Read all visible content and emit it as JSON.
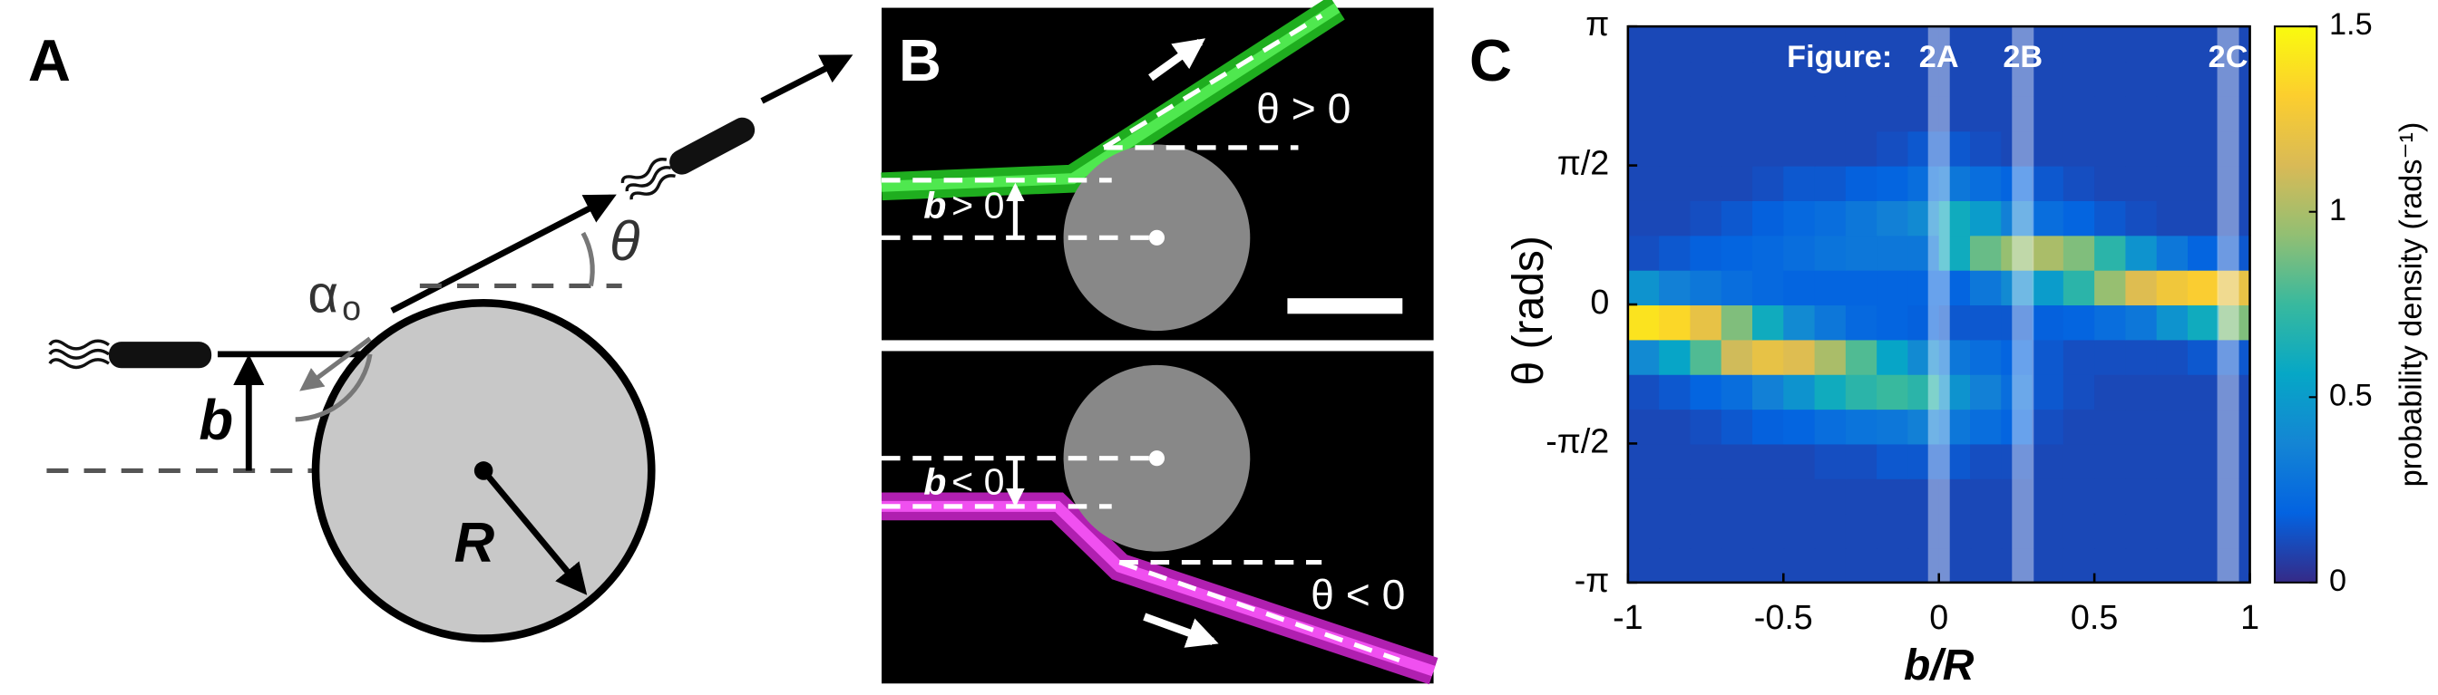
{
  "panel_a": {
    "label": "A",
    "alpha": "α",
    "alpha_sub": "o",
    "theta": "θ",
    "b": "b",
    "r": "R"
  },
  "panel_b": {
    "label": "B",
    "top_theta": "θ > 0",
    "top_b": "b",
    "top_b_rel": "> 0",
    "bottom_b": "b",
    "bottom_b_rel": "< 0",
    "bottom_theta": "θ < 0"
  },
  "chart_data": {
    "type": "heatmap",
    "label": "C",
    "xlabel": "b/R",
    "ylabel": "θ (rads)",
    "xlim": [
      -1,
      1
    ],
    "xticks": [
      -1,
      -0.5,
      0,
      0.5,
      1
    ],
    "ylim": [
      -3.1416,
      3.1416
    ],
    "yticks": [
      {
        "value": -3.1416,
        "label": "-π"
      },
      {
        "value": -1.5708,
        "label": "-π/2"
      },
      0,
      {
        "value": 1.5708,
        "label": "π/2"
      },
      {
        "value": 3.1416,
        "label": "π"
      }
    ],
    "z": [
      [
        0.1,
        0.1,
        0.1,
        0.1,
        0.1,
        0.1,
        0.1,
        0.1,
        0.1,
        0.1,
        0.1,
        0.1,
        0.1,
        0.1,
        0.1,
        0.1,
        0.1,
        0.1,
        0.1,
        0.1
      ],
      [
        0.1,
        0.1,
        0.1,
        0.1,
        0.1,
        0.1,
        0.1,
        0.1,
        0.1,
        0.1,
        0.1,
        0.1,
        0.1,
        0.1,
        0.1,
        0.1,
        0.1,
        0.1,
        0.1,
        0.1
      ],
      [
        0.1,
        0.1,
        0.1,
        0.1,
        0.1,
        0.1,
        0.1,
        0.1,
        0.1,
        0.1,
        0.1,
        0.1,
        0.1,
        0.1,
        0.1,
        0.1,
        0.1,
        0.1,
        0.1,
        0.1
      ],
      [
        0.1,
        0.1,
        0.1,
        0.1,
        0.1,
        0.1,
        0.12,
        0.12,
        0.15,
        0.15,
        0.15,
        0.12,
        0.12,
        0.1,
        0.1,
        0.1,
        0.1,
        0.1,
        0.1,
        0.1
      ],
      [
        0.1,
        0.1,
        0.12,
        0.15,
        0.18,
        0.2,
        0.25,
        0.28,
        0.3,
        0.35,
        0.3,
        0.25,
        0.2,
        0.12,
        0.1,
        0.1,
        0.1,
        0.1,
        0.1,
        0.1
      ],
      [
        0.12,
        0.15,
        0.2,
        0.25,
        0.35,
        0.45,
        0.6,
        0.7,
        0.75,
        0.7,
        0.45,
        0.35,
        0.25,
        0.15,
        0.12,
        0.1,
        0.1,
        0.1,
        0.1,
        0.1
      ],
      [
        0.4,
        0.55,
        0.8,
        1.1,
        1.2,
        1.15,
        1,
        0.8,
        0.55,
        0.4,
        0.3,
        0.25,
        0.2,
        0.15,
        0.12,
        0.12,
        0.12,
        0.12,
        0.15,
        0.15
      ],
      [
        1.4,
        1.35,
        1.2,
        0.9,
        0.6,
        0.4,
        0.3,
        0.22,
        0.2,
        0.18,
        0.15,
        0.15,
        0.15,
        0.18,
        0.2,
        0.25,
        0.3,
        0.45,
        0.6,
        0.9
      ],
      [
        0.45,
        0.35,
        0.3,
        0.25,
        0.22,
        0.2,
        0.2,
        0.2,
        0.2,
        0.2,
        0.2,
        0.3,
        0.4,
        0.5,
        0.7,
        0.95,
        1.15,
        1.25,
        1.3,
        1.2
      ],
      [
        0.12,
        0.15,
        0.18,
        0.2,
        0.22,
        0.25,
        0.28,
        0.3,
        0.3,
        0.3,
        0.6,
        0.85,
        0.95,
        1,
        0.9,
        0.7,
        0.45,
        0.3,
        0.2,
        0.15
      ],
      [
        0.1,
        0.1,
        0.12,
        0.15,
        0.18,
        0.22,
        0.25,
        0.3,
        0.35,
        0.4,
        0.6,
        0.5,
        0.35,
        0.25,
        0.2,
        0.15,
        0.12,
        0.1,
        0.1,
        0.1
      ],
      [
        0.1,
        0.1,
        0.1,
        0.1,
        0.12,
        0.15,
        0.15,
        0.18,
        0.2,
        0.25,
        0.3,
        0.25,
        0.2,
        0.15,
        0.12,
        0.1,
        0.1,
        0.1,
        0.1,
        0.1
      ],
      [
        0.1,
        0.1,
        0.1,
        0.1,
        0.1,
        0.1,
        0.1,
        0.1,
        0.12,
        0.15,
        0.15,
        0.12,
        0.1,
        0.1,
        0.1,
        0.1,
        0.1,
        0.1,
        0.1,
        0.1
      ],
      [
        0.1,
        0.1,
        0.1,
        0.1,
        0.1,
        0.1,
        0.1,
        0.1,
        0.1,
        0.1,
        0.1,
        0.1,
        0.1,
        0.1,
        0.1,
        0.1,
        0.1,
        0.1,
        0.1,
        0.1
      ],
      [
        0.1,
        0.1,
        0.1,
        0.1,
        0.1,
        0.1,
        0.1,
        0.1,
        0.1,
        0.1,
        0.1,
        0.1,
        0.1,
        0.1,
        0.1,
        0.1,
        0.1,
        0.1,
        0.1,
        0.1
      ],
      [
        0.1,
        0.1,
        0.1,
        0.1,
        0.1,
        0.1,
        0.1,
        0.1,
        0.1,
        0.1,
        0.1,
        0.1,
        0.1,
        0.1,
        0.1,
        0.1,
        0.1,
        0.1,
        0.1,
        0.1
      ]
    ],
    "clim": [
      0,
      1.5
    ],
    "colorbar_ticks": [
      0,
      0.5,
      1,
      1.5
    ],
    "colorbar_label": "probability density (rads⁻¹)",
    "colormap": [
      "#352a87",
      "#0363e1",
      "#1485d4",
      "#06a7c6",
      "#38b99e",
      "#92bf73",
      "#d9ba56",
      "#fcce2e",
      "#f9fb0e"
    ],
    "highlight_title": "Figure:",
    "highlights": [
      {
        "x": 0,
        "label": "2A"
      },
      {
        "x": 0.27,
        "label": "2B"
      },
      {
        "x": 0.93,
        "label": "2C"
      }
    ]
  }
}
